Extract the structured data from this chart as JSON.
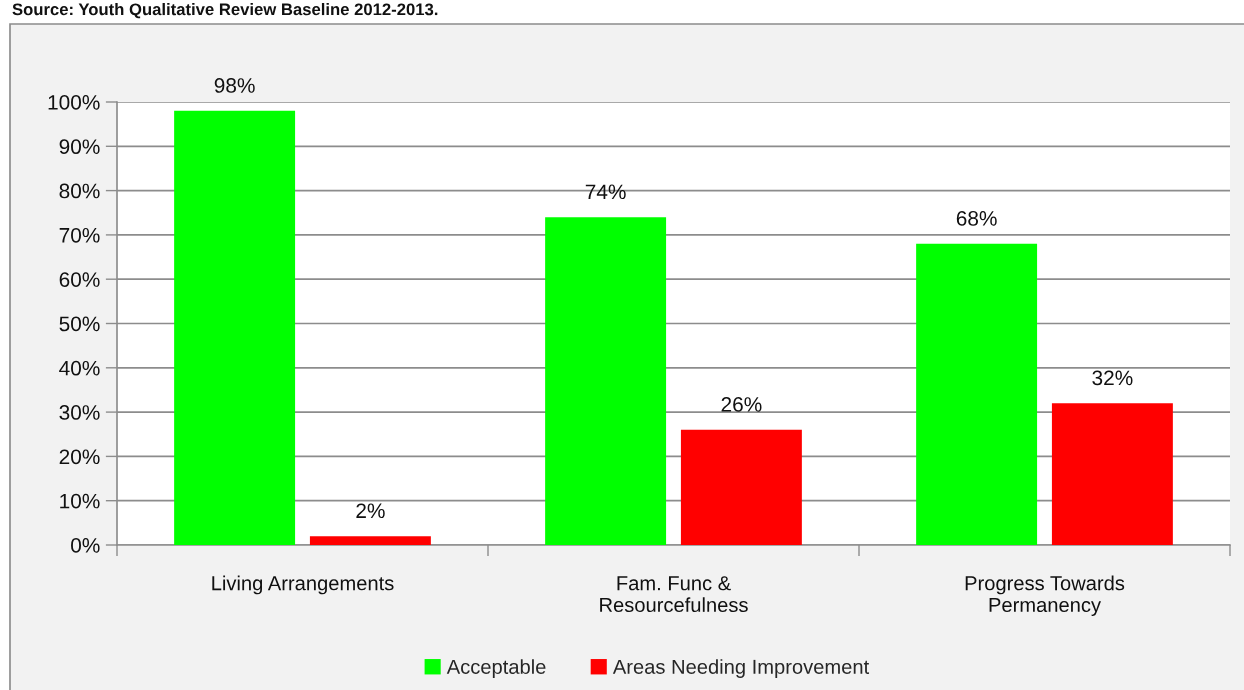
{
  "chart_data": {
    "type": "bar",
    "annotations": [
      "Source: Youth Qualitative Review Baseline 2012-2013."
    ],
    "categories": [
      "Living Arrangements",
      "Fam. Func &\nResourcefulness",
      "Progress Towards\nPermanency"
    ],
    "series": [
      {
        "name": "Acceptable",
        "color": "#00ff00",
        "values": [
          98,
          74,
          68
        ],
        "value_labels": [
          "98%",
          "74%",
          "68%"
        ]
      },
      {
        "name": "Areas Needing Improvement",
        "color": "#ff0000",
        "values": [
          2,
          26,
          32
        ],
        "value_labels": [
          "2%",
          "26%",
          "32%"
        ]
      }
    ],
    "ylim": [
      0,
      100
    ],
    "yticks": [
      {
        "value": 0,
        "label": "0%"
      },
      {
        "value": 10,
        "label": "10%"
      },
      {
        "value": 20,
        "label": "20%"
      },
      {
        "value": 30,
        "label": "30%"
      },
      {
        "value": 40,
        "label": "40%"
      },
      {
        "value": 50,
        "label": "50%"
      },
      {
        "value": 60,
        "label": "60%"
      },
      {
        "value": 70,
        "label": "70%"
      },
      {
        "value": 80,
        "label": "80%"
      },
      {
        "value": 90,
        "label": "90%"
      },
      {
        "value": 100,
        "label": "100%"
      }
    ],
    "grid": "y",
    "legend": "bottom"
  }
}
